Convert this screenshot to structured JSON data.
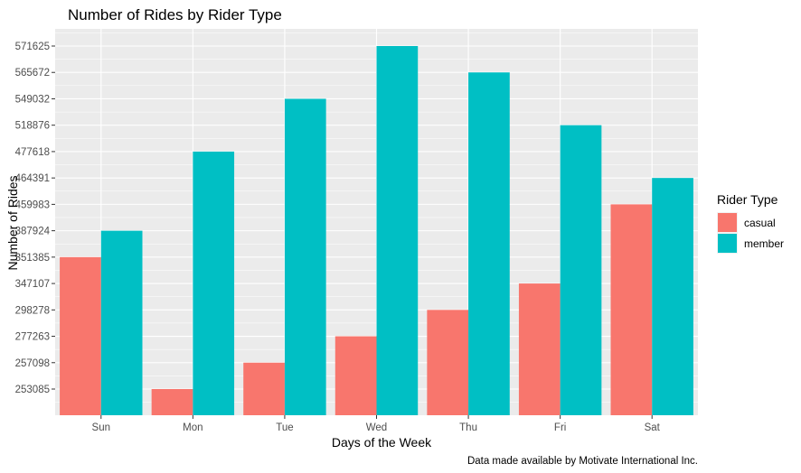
{
  "chart_data": {
    "type": "bar",
    "title": "Number of Rides by Rider Type",
    "xlabel": "Days of the Week",
    "ylabel": "Number of Rides",
    "caption": "Data made available by Motivate International Inc.",
    "categories": [
      "Sun",
      "Mon",
      "Tue",
      "Wed",
      "Thu",
      "Fri",
      "Sat"
    ],
    "y_ticks": [
      "253085",
      "257098",
      "277263",
      "298278",
      "347107",
      "351385",
      "387924",
      "459983",
      "464391",
      "477618",
      "518876",
      "549032",
      "565672",
      "571625"
    ],
    "legend_title": "Rider Type",
    "legend_position": "right",
    "grid": true,
    "series": [
      {
        "name": "casual",
        "color": "#F8766D",
        "values": [
          351385,
          253085,
          257098,
          277263,
          298278,
          347107,
          459983
        ]
      },
      {
        "name": "member",
        "color": "#00BFC4",
        "values": [
          387924,
          477618,
          549032,
          571625,
          565672,
          518876,
          464391
        ]
      }
    ],
    "panel_background": "#EBEBEB",
    "grid_color": "#FFFFFF"
  }
}
